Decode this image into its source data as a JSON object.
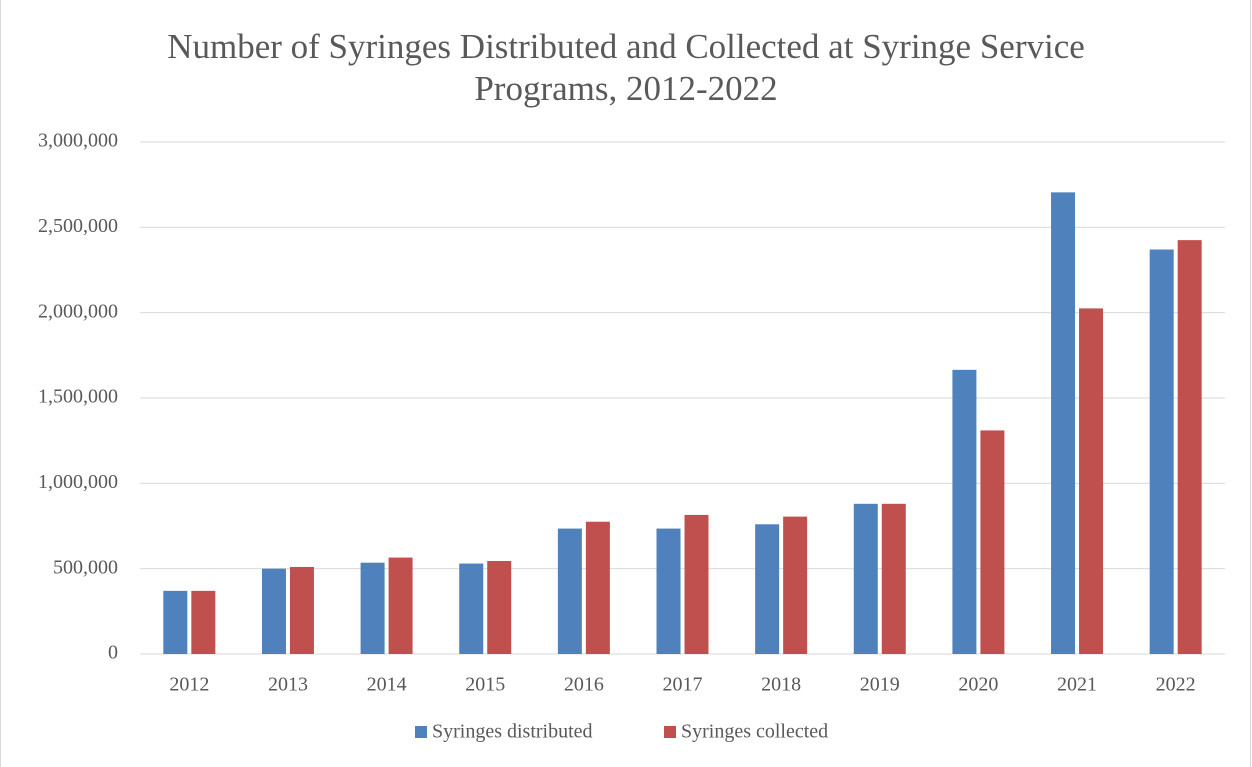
{
  "chart_data": {
    "type": "bar",
    "title": "Number of Syringes Distributed and Collected at Syringe Service Programs, 2012-2022",
    "categories": [
      "2012",
      "2013",
      "2014",
      "2015",
      "2016",
      "2017",
      "2018",
      "2019",
      "2020",
      "2021",
      "2022"
    ],
    "series": [
      {
        "name": "Syringes distributed",
        "color": "#4f81bd",
        "values": [
          370000,
          500000,
          535000,
          530000,
          735000,
          735000,
          760000,
          880000,
          1665000,
          2705000,
          2370000
        ]
      },
      {
        "name": "Syringes collected",
        "color": "#c0504d",
        "values": [
          370000,
          510000,
          565000,
          545000,
          775000,
          815000,
          805000,
          880000,
          1310000,
          2025000,
          2425000
        ]
      }
    ],
    "ylim": [
      0,
      3000000
    ],
    "yticks": [
      0,
      {
        "value": 500000,
        "label": "500,000"
      },
      {
        "value": 1000000,
        "label": "1,000,000"
      },
      {
        "value": 1500000,
        "label": "1,500,000"
      },
      {
        "value": 2000000,
        "label": "2,000,000"
      },
      {
        "value": 2500000,
        "label": "2,500,000"
      },
      {
        "value": 3000000,
        "label": "3,000,000"
      }
    ],
    "grid": true,
    "legend": "bottom"
  }
}
